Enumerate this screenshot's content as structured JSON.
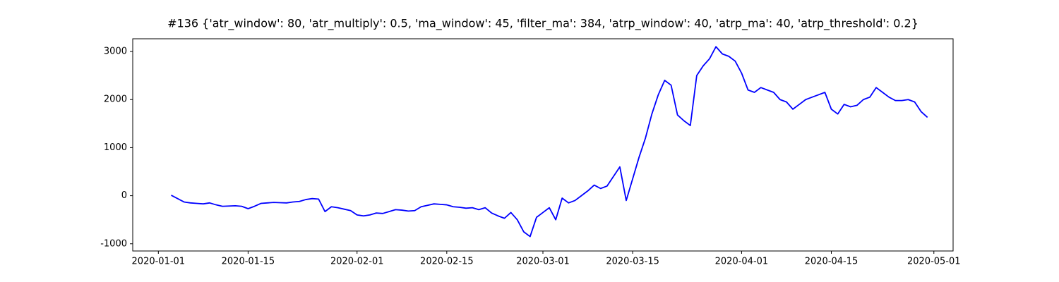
{
  "chart_data": {
    "type": "line",
    "title": "#136 {'atr_window': 80, 'atr_multiply': 0.5, 'ma_window': 45, 'filter_ma': 384, 'atrp_window': 40, 'atrp_ma': 40, 'atrp_threshold': 0.2}",
    "color": "#0000ff",
    "x": [
      "2020-01-03",
      "2020-01-04",
      "2020-01-05",
      "2020-01-06",
      "2020-01-07",
      "2020-01-08",
      "2020-01-09",
      "2020-01-10",
      "2020-01-11",
      "2020-01-12",
      "2020-01-13",
      "2020-01-14",
      "2020-01-15",
      "2020-01-16",
      "2020-01-17",
      "2020-01-18",
      "2020-01-19",
      "2020-01-20",
      "2020-01-21",
      "2020-01-22",
      "2020-01-23",
      "2020-01-24",
      "2020-01-25",
      "2020-01-26",
      "2020-01-27",
      "2020-01-28",
      "2020-01-29",
      "2020-01-30",
      "2020-01-31",
      "2020-02-01",
      "2020-02-02",
      "2020-02-03",
      "2020-02-04",
      "2020-02-05",
      "2020-02-06",
      "2020-02-07",
      "2020-02-08",
      "2020-02-09",
      "2020-02-10",
      "2020-02-11",
      "2020-02-12",
      "2020-02-13",
      "2020-02-14",
      "2020-02-15",
      "2020-02-16",
      "2020-02-17",
      "2020-02-18",
      "2020-02-19",
      "2020-02-20",
      "2020-02-21",
      "2020-02-22",
      "2020-02-23",
      "2020-02-24",
      "2020-02-25",
      "2020-02-26",
      "2020-02-27",
      "2020-02-28",
      "2020-02-29",
      "2020-03-01",
      "2020-03-02",
      "2020-03-03",
      "2020-03-04",
      "2020-03-05",
      "2020-03-06",
      "2020-03-07",
      "2020-03-08",
      "2020-03-09",
      "2020-03-10",
      "2020-03-11",
      "2020-03-12",
      "2020-03-13",
      "2020-03-14",
      "2020-03-15",
      "2020-03-16",
      "2020-03-17",
      "2020-03-18",
      "2020-03-19",
      "2020-03-20",
      "2020-03-21",
      "2020-03-22",
      "2020-03-23",
      "2020-03-24",
      "2020-03-25",
      "2020-03-26",
      "2020-03-27",
      "2020-03-28",
      "2020-03-29",
      "2020-03-30",
      "2020-03-31",
      "2020-04-01",
      "2020-04-02",
      "2020-04-03",
      "2020-04-04",
      "2020-04-05",
      "2020-04-06",
      "2020-04-07",
      "2020-04-08",
      "2020-04-09",
      "2020-04-10",
      "2020-04-11",
      "2020-04-12",
      "2020-04-13",
      "2020-04-14",
      "2020-04-15",
      "2020-04-16",
      "2020-04-17",
      "2020-04-18",
      "2020-04-19",
      "2020-04-20",
      "2020-04-21",
      "2020-04-22",
      "2020-04-23",
      "2020-04-24",
      "2020-04-25",
      "2020-04-26",
      "2020-04-27",
      "2020-04-28",
      "2020-04-29",
      "2020-04-30"
    ],
    "values": [
      10,
      -60,
      -130,
      -150,
      -160,
      -170,
      -150,
      -190,
      -220,
      -215,
      -210,
      -220,
      -270,
      -220,
      -160,
      -150,
      -140,
      -145,
      -150,
      -130,
      -120,
      -80,
      -60,
      -70,
      -330,
      -230,
      -250,
      -280,
      -310,
      -400,
      -420,
      -400,
      -360,
      -370,
      -330,
      -290,
      -300,
      -320,
      -310,
      -230,
      -200,
      -170,
      -180,
      -190,
      -230,
      -240,
      -260,
      -250,
      -290,
      -250,
      -360,
      -420,
      -470,
      -350,
      -500,
      -750,
      -850,
      -450,
      -350,
      -250,
      -500,
      -50,
      -150,
      -100,
      0,
      100,
      220,
      150,
      200,
      400,
      600,
      -100,
      350,
      800,
      1200,
      1700,
      2100,
      2400,
      2300,
      1680,
      1560,
      1460,
      2500,
      2700,
      2850,
      3100,
      2950,
      2900,
      2800,
      2550,
      2200,
      2150,
      2250,
      2200,
      2150,
      2000,
      1950,
      1800,
      1900,
      2000,
      2050,
      2100,
      2150,
      1800,
      1700,
      1900,
      1850,
      1880,
      2000,
      2050,
      2250,
      2150,
      2050,
      1980,
      1980,
      2000,
      1950,
      1750,
      1630
    ],
    "xlim": [
      "2019-12-28",
      "2020-05-04"
    ],
    "xticks": [
      "2020-01-01",
      "2020-01-15",
      "2020-02-01",
      "2020-02-15",
      "2020-03-01",
      "2020-03-15",
      "2020-04-01",
      "2020-04-15",
      "2020-05-01"
    ],
    "ylim": [
      -1150,
      3265
    ],
    "yticks": [
      -1000,
      0,
      1000,
      2000,
      3000
    ]
  }
}
